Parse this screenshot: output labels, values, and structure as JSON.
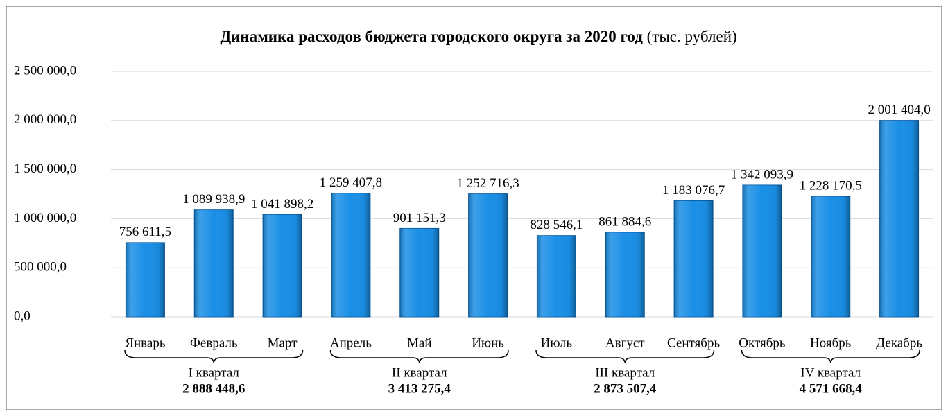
{
  "chart_data": {
    "type": "bar",
    "title": "Динамика расходов бюджета городского округа за 2020 год",
    "subtitle": "(тыс. рублей)",
    "categories": [
      "Январь",
      "Февраль",
      "Март",
      "Апрель",
      "Май",
      "Июнь",
      "Июль",
      "Август",
      "Сентябрь",
      "Октябрь",
      "Ноябрь",
      "Декабрь"
    ],
    "values": [
      756611.5,
      1089938.9,
      1041898.2,
      1259407.8,
      901151.3,
      1252716.3,
      828546.1,
      861884.6,
      1183076.7,
      1342093.9,
      1228170.5,
      2001404.0
    ],
    "value_labels": [
      "756 611,5",
      "1 089 938,9",
      "1 041 898,2",
      "1 259 407,8",
      "901 151,3",
      "1 252 716,3",
      "828 546,1",
      "861 884,6",
      "1 183 076,7",
      "1 342 093,9",
      "1 228 170,5",
      "2 001 404,0"
    ],
    "color": "#1a8fe6",
    "ylim": [
      0,
      2500000
    ],
    "yticks": [
      {
        "value": 0,
        "label": "0,0"
      },
      {
        "value": 500000,
        "label": "500 000,0"
      },
      {
        "value": 1000000,
        "label": "1 000 000,0"
      },
      {
        "value": 1500000,
        "label": "1 500 000,0"
      },
      {
        "value": 2000000,
        "label": "2 000 000,0"
      },
      {
        "value": 2500000,
        "label": "2 500 000,0"
      }
    ],
    "grid": true,
    "quarters": [
      {
        "name": "I квартал",
        "total": 2888448.6,
        "total_label": "2 888 448,6"
      },
      {
        "name": "II квартал",
        "total": 3413275.4,
        "total_label": "3 413 275,4"
      },
      {
        "name": "III квартал",
        "total": 2873507.4,
        "total_label": "2 873 507,4"
      },
      {
        "name": "IV квартал",
        "total": 4571668.4,
        "total_label": "4 571 668,4"
      }
    ]
  }
}
